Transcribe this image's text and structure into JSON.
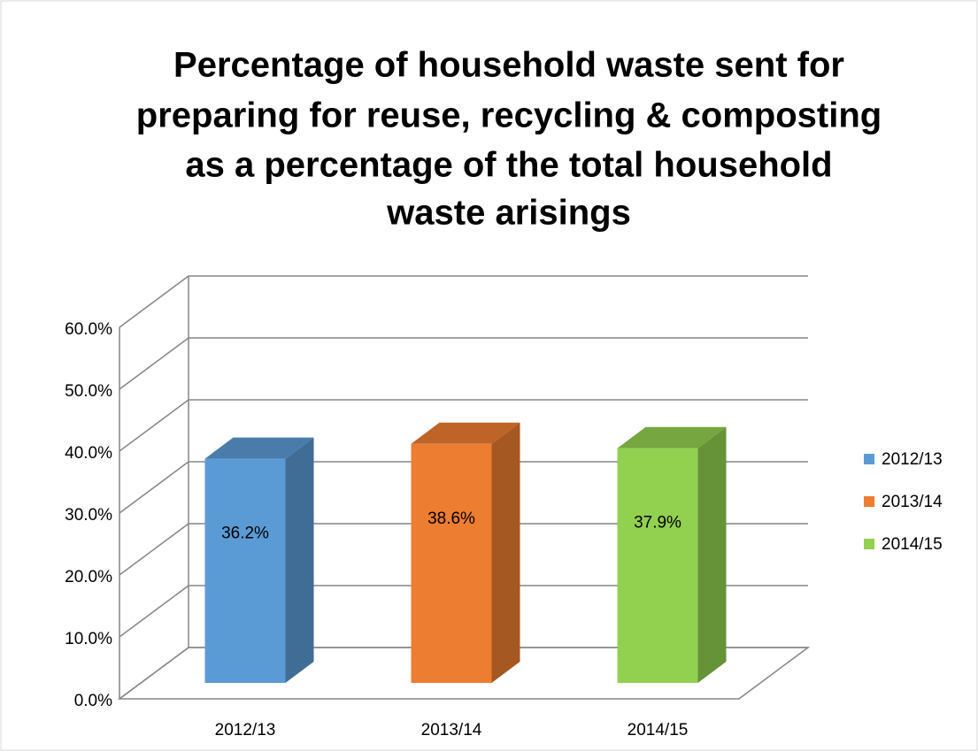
{
  "chart_data": {
    "type": "bar3d",
    "title": [
      "Percentage of household waste sent for",
      "preparing for reuse, recycling & composting",
      "as a percentage of the total household",
      "waste arisings"
    ],
    "categories": [
      "2012/13",
      "2013/14",
      "2014/15"
    ],
    "series": [
      {
        "name": "2012/13",
        "color": "#5b9bd5",
        "values": [
          36.2,
          null,
          null
        ],
        "value_labels": [
          "36.2%",
          null,
          null
        ]
      },
      {
        "name": "2013/14",
        "color": "#ed7d31",
        "values": [
          null,
          38.6,
          null
        ],
        "value_labels": [
          null,
          "38.6%",
          null
        ]
      },
      {
        "name": "2014/15",
        "color": "#92d050",
        "values": [
          null,
          null,
          37.9
        ],
        "value_labels": [
          null,
          null,
          "37.9%"
        ]
      }
    ],
    "ylim": [
      0,
      60
    ],
    "yticks": [
      {
        "value": 0,
        "label": "0.0%"
      },
      {
        "value": 10,
        "label": "10.0%"
      },
      {
        "value": 20,
        "label": "20.0%"
      },
      {
        "value": 30,
        "label": "30.0%"
      },
      {
        "value": 40,
        "label": "40.0%"
      },
      {
        "value": 50,
        "label": "50.0%"
      },
      {
        "value": 60,
        "label": "60.0%"
      }
    ],
    "grid": true,
    "legend": "right"
  }
}
